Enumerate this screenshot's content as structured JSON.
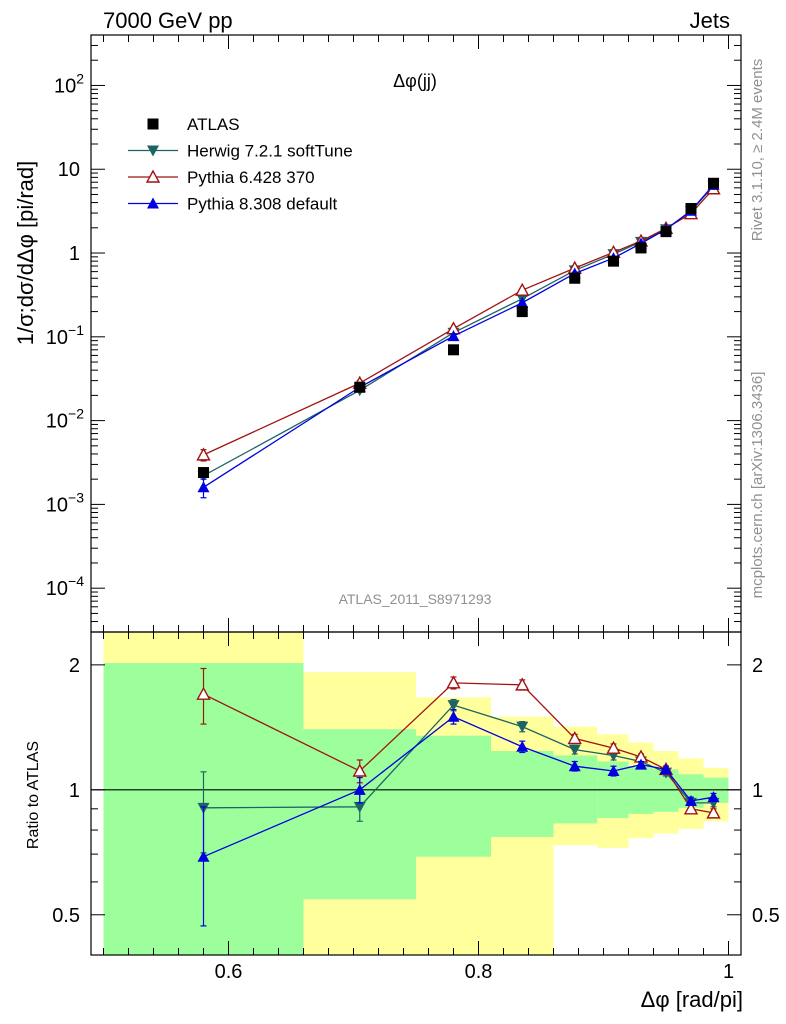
{
  "header": {
    "left": "7000 GeV pp",
    "right": "Jets"
  },
  "side_labels": {
    "rivet": "Rivet 3.1.10, ≥ 2.4M events",
    "mcplots": "mcplots.cern.ch [arXiv:1306.3436]"
  },
  "plot_title": "Δφ(jj)",
  "analysis_id": "ATLAS_2011_S8971293",
  "colors": {
    "data": "#000000",
    "herwig": "#1e6464",
    "pythia6": "#a01414",
    "pythia8": "#0000e0",
    "band_inner": "#9cff9c",
    "band_outer": "#ffff9c"
  },
  "chart_data": [
    {
      "type": "scatter",
      "panel": "main",
      "ylabel": "1/σ;dσ/dΔφ [pi/rad]",
      "yscale": "log",
      "ylim": [
        3e-05,
        400
      ],
      "xlim": [
        0.49,
        1.01
      ],
      "yticks": [
        {
          "value": 0.0001,
          "base": "10",
          "exp": "−4"
        },
        {
          "value": 0.001,
          "base": "10",
          "exp": "−3"
        },
        {
          "value": 0.01,
          "base": "10",
          "exp": "−2"
        },
        {
          "value": 0.1,
          "base": "10",
          "exp": "−1"
        },
        {
          "value": 1,
          "base": "1",
          "exp": ""
        },
        {
          "value": 10,
          "base": "10",
          "exp": ""
        },
        {
          "value": 100,
          "base": "10",
          "exp": "2"
        }
      ],
      "x": [
        0.58,
        0.705,
        0.78,
        0.835,
        0.877,
        0.908,
        0.93,
        0.95,
        0.97,
        0.988
      ],
      "series": [
        {
          "name": "ATLAS",
          "key": "data",
          "marker": "square",
          "values": [
            0.0024,
            0.025,
            0.07,
            0.2,
            0.5,
            0.8,
            1.15,
            1.8,
            3.4,
            6.8
          ],
          "err": [
            0.0003,
            0.002,
            0.005,
            0.01,
            0.02,
            0.03,
            0.04,
            0.06,
            0.1,
            0.2
          ]
        },
        {
          "name": "Herwig 7.2.1 softTune",
          "key": "herwig",
          "marker": "triangle-down",
          "values": [
            0.0022,
            0.023,
            0.112,
            0.285,
            0.62,
            0.97,
            1.36,
            1.92,
            3.15,
            6.35
          ]
        },
        {
          "name": "Pythia 6.428 370",
          "key": "pythia6",
          "marker": "triangle-up-open",
          "values": [
            0.0039,
            0.028,
            0.125,
            0.36,
            0.66,
            1.02,
            1.39,
            1.97,
            2.95,
            5.85
          ],
          "err": [
            0.0006,
            0.002,
            0.006,
            0.012,
            0.02,
            0.03,
            0.04,
            0.05,
            0.08,
            0.15
          ]
        },
        {
          "name": "Pythia 8.308 default",
          "key": "pythia8",
          "marker": "triangle-up",
          "values": [
            0.0016,
            0.025,
            0.102,
            0.255,
            0.57,
            0.87,
            1.3,
            1.92,
            3.2,
            6.5
          ],
          "err": [
            0.0004,
            0.002,
            0.006,
            0.012,
            0.02,
            0.03,
            0.04,
            0.05,
            0.08,
            0.15
          ]
        }
      ]
    },
    {
      "type": "scatter",
      "panel": "ratio",
      "ylabel": "Ratio to ATLAS",
      "xlabel": "Δφ [rad/pi]",
      "yscale": "log",
      "ylim": [
        0.4,
        2.4
      ],
      "xlim": [
        0.49,
        1.01
      ],
      "yticks": [
        0.5,
        1,
        2
      ],
      "xticks": [
        0.6,
        0.8,
        1
      ],
      "x": [
        0.58,
        0.705,
        0.78,
        0.835,
        0.877,
        0.908,
        0.93,
        0.95,
        0.97,
        0.988
      ],
      "bands": [
        {
          "x1": 0.5,
          "x2": 0.66,
          "outer": [
            0.4,
            2.4
          ],
          "inner": [
            0.4,
            2.02
          ]
        },
        {
          "x1": 0.66,
          "x2": 0.75,
          "outer": [
            0.4,
            1.92
          ],
          "inner": [
            0.545,
            1.4
          ]
        },
        {
          "x1": 0.75,
          "x2": 0.81,
          "outer": [
            0.4,
            1.67
          ],
          "inner": [
            0.69,
            1.35
          ]
        },
        {
          "x1": 0.81,
          "x2": 0.86,
          "outer": [
            0.4,
            1.5
          ],
          "inner": [
            0.77,
            1.24
          ]
        },
        {
          "x1": 0.86,
          "x2": 0.895,
          "outer": [
            0.735,
            1.42
          ],
          "inner": [
            0.83,
            1.21
          ]
        },
        {
          "x1": 0.895,
          "x2": 0.92,
          "outer": [
            0.725,
            1.36
          ],
          "inner": [
            0.855,
            1.17
          ]
        },
        {
          "x1": 0.92,
          "x2": 0.94,
          "outer": [
            0.765,
            1.3
          ],
          "inner": [
            0.875,
            1.14
          ]
        },
        {
          "x1": 0.94,
          "x2": 0.96,
          "outer": [
            0.785,
            1.24
          ],
          "inner": [
            0.885,
            1.12
          ]
        },
        {
          "x1": 0.96,
          "x2": 0.98,
          "outer": [
            0.805,
            1.19
          ],
          "inner": [
            0.905,
            1.09
          ]
        },
        {
          "x1": 0.98,
          "x2": 1.0,
          "outer": [
            0.84,
            1.13
          ],
          "inner": [
            0.93,
            1.07
          ]
        }
      ],
      "series": [
        {
          "name": "Herwig 7.2.1 softTune",
          "key": "herwig",
          "marker": "triangle-down",
          "values": [
            0.905,
            0.91,
            1.6,
            1.42,
            1.25,
            1.21,
            1.17,
            1.1,
            0.93,
            0.93
          ],
          "err": [
            0.2,
            0.07,
            0.05,
            0.04,
            0.03,
            0.03,
            0.02,
            0.02,
            0.02,
            0.02
          ]
        },
        {
          "name": "Pythia 6.428 370",
          "key": "pythia6",
          "marker": "triangle-up-open",
          "values": [
            1.7,
            1.11,
            1.81,
            1.79,
            1.33,
            1.26,
            1.2,
            1.12,
            0.9,
            0.88
          ],
          "err": [
            0.26,
            0.07,
            0.06,
            0.05,
            0.03,
            0.03,
            0.02,
            0.02,
            0.02,
            0.02
          ]
        },
        {
          "name": "Pythia 8.308 default",
          "key": "pythia8",
          "marker": "triangle-up",
          "values": [
            0.69,
            1.0,
            1.5,
            1.27,
            1.14,
            1.11,
            1.15,
            1.12,
            0.94,
            0.96
          ],
          "err": [
            0.22,
            0.07,
            0.06,
            0.04,
            0.03,
            0.03,
            0.02,
            0.02,
            0.02,
            0.02
          ]
        }
      ]
    }
  ]
}
